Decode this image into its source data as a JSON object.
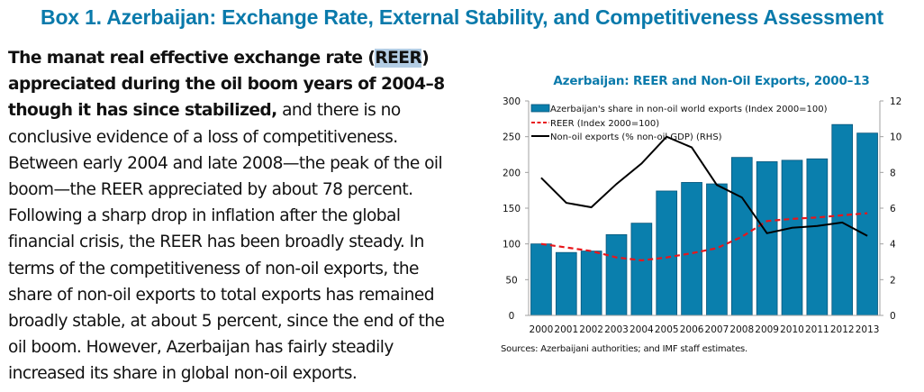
{
  "box_title": "Box 1. Azerbaijan: Exchange Rate, External Stability, and Competitiveness Assessment",
  "body": {
    "lines": [
      {
        "parts": [
          {
            "text": "The manat real effective exchange rate (",
            "bold": true
          },
          {
            "text": "REER",
            "bold": true,
            "selected": true
          },
          {
            "text": ")",
            "bold": true
          }
        ]
      },
      {
        "parts": [
          {
            "text": "appreciated during the oil boom years of 2004–8",
            "bold": true
          }
        ]
      },
      {
        "parts": [
          {
            "text": "though it has since stabilized,",
            "bold": true
          },
          {
            "text": " and there is no",
            "bold": false
          }
        ]
      },
      {
        "parts": [
          {
            "text": "conclusive evidence of a loss of competitiveness.",
            "bold": false
          }
        ]
      },
      {
        "parts": [
          {
            "text": "Between early 2004 and late 2008—the peak of the oil",
            "bold": false
          }
        ]
      },
      {
        "parts": [
          {
            "text": "boom—the REER appreciated by about 78 percent.",
            "bold": false
          }
        ]
      },
      {
        "parts": [
          {
            "text": "Following a sharp drop in inflation after the global",
            "bold": false
          }
        ]
      },
      {
        "parts": [
          {
            "text": "financial crisis, the REER has been broadly steady. In",
            "bold": false
          }
        ]
      },
      {
        "parts": [
          {
            "text": "terms of the competitiveness of non-oil exports, the",
            "bold": false
          }
        ]
      },
      {
        "parts": [
          {
            "text": "share of non-oil exports to total exports has remained",
            "bold": false
          }
        ]
      },
      {
        "parts": [
          {
            "text": "broadly stable, at about 5 percent, since the end of the",
            "bold": false
          }
        ]
      },
      {
        "parts": [
          {
            "text": "oil boom. However, Azerbaijan has fairly steadily",
            "bold": false
          }
        ]
      },
      {
        "parts": [
          {
            "text": "increased its share in global non-oil exports.",
            "bold": false
          }
        ]
      }
    ]
  },
  "source_note": "Sources: Azerbaijani authorities; and IMF staff estimates.",
  "colors": {
    "title": "#0a7aab",
    "bar": "#0a7fad",
    "bar_edge": "#08557a",
    "reer": "#e8161b",
    "nonoil": "#000000",
    "axis": "#a0a0a0",
    "selection": "#b3cde4"
  },
  "chart_data": {
    "type": "bar",
    "title": "Azerbaijan: REER and Non-Oil Exports, 2000–13",
    "categories": [
      "2000",
      "2001",
      "2002",
      "2003",
      "2004",
      "2005",
      "2006",
      "2007",
      "2008",
      "2009",
      "2010",
      "2011",
      "2012",
      "2013"
    ],
    "series": [
      {
        "name": "Azerbaijan's share in non-oil world exports (Index 2000=100)",
        "type": "bar",
        "axis": "left",
        "values": [
          100,
          88,
          90,
          113,
          129,
          174,
          186,
          184,
          221,
          215,
          217,
          219,
          267,
          255
        ]
      },
      {
        "name": "REER (Index 2000=100)",
        "type": "line",
        "style": "dashed",
        "axis": "left",
        "values": [
          100,
          95,
          90,
          81,
          77,
          81,
          87,
          94,
          110,
          132,
          135,
          137,
          140,
          143
        ]
      },
      {
        "name": "Non-oil exports (% non-oil GDP) (RHS)",
        "type": "line",
        "style": "solid",
        "axis": "right",
        "values": [
          7.7,
          6.3,
          6.05,
          7.35,
          8.5,
          10.0,
          9.4,
          7.3,
          6.6,
          4.6,
          4.9,
          5.0,
          5.2,
          4.45
        ]
      }
    ],
    "xlabel": "",
    "ylabel_left": "",
    "ylabel_right": "",
    "ylim_left": [
      0,
      300
    ],
    "ylim_right": [
      0,
      12
    ],
    "yticks_left": [
      "0",
      "50",
      "100",
      "150",
      "200",
      "250",
      "300"
    ],
    "yticks_right": [
      "0",
      "2",
      "4",
      "6",
      "8",
      "10",
      "12"
    ],
    "grid": false,
    "legend_position": "top-left"
  }
}
